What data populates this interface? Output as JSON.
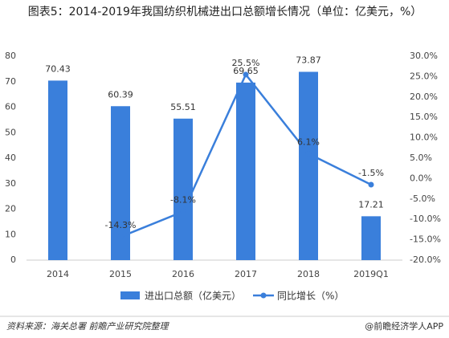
{
  "chart_data": {
    "type": "bar_line",
    "title": "图表5：2014-2019年我国纺织机械进出口总额增长情况（单位：亿美元，%）",
    "categories": [
      "2014",
      "2015",
      "2016",
      "2017",
      "2018",
      "2019Q1"
    ],
    "series": [
      {
        "name": "进出口总额（亿美元）",
        "color": "#3a7fdb",
        "type": "bar",
        "values": [
          70.43,
          60.39,
          55.51,
          69.65,
          73.87,
          17.21
        ]
      },
      {
        "name": "同比增长（%）",
        "color": "#3a7fdb",
        "type": "line",
        "axis": "y2",
        "values": [
          null,
          -14.3,
          -8.1,
          25.5,
          6.1,
          -1.5
        ],
        "value_labels": [
          null,
          "-14.3%",
          "-8.1%",
          "25.5%",
          "6.1%",
          "-1.5%"
        ]
      }
    ],
    "ylim": [
      0,
      80
    ],
    "yticks": [
      0,
      10,
      20,
      30,
      40,
      50,
      60,
      70,
      80
    ],
    "y2lim": [
      -20,
      30
    ],
    "y2ticks": [
      {
        "value": -20,
        "label": "-20.0%"
      },
      {
        "value": -15,
        "label": "-15.0%"
      },
      {
        "value": -10,
        "label": "-10.0%"
      },
      {
        "value": -5,
        "label": "-5.0%"
      },
      {
        "value": 0,
        "label": "0.0%"
      },
      {
        "value": 5,
        "label": "5.0%"
      },
      {
        "value": 10,
        "label": "10.0%"
      },
      {
        "value": 15,
        "label": "15.0%"
      },
      {
        "value": 20,
        "label": "20.0%"
      },
      {
        "value": 25,
        "label": "25.0%"
      },
      {
        "value": 30,
        "label": "30.0%"
      }
    ],
    "source": "资料来源：海关总署 前瞻产业研究院整理",
    "brand": "@前瞻经济学人APP"
  }
}
